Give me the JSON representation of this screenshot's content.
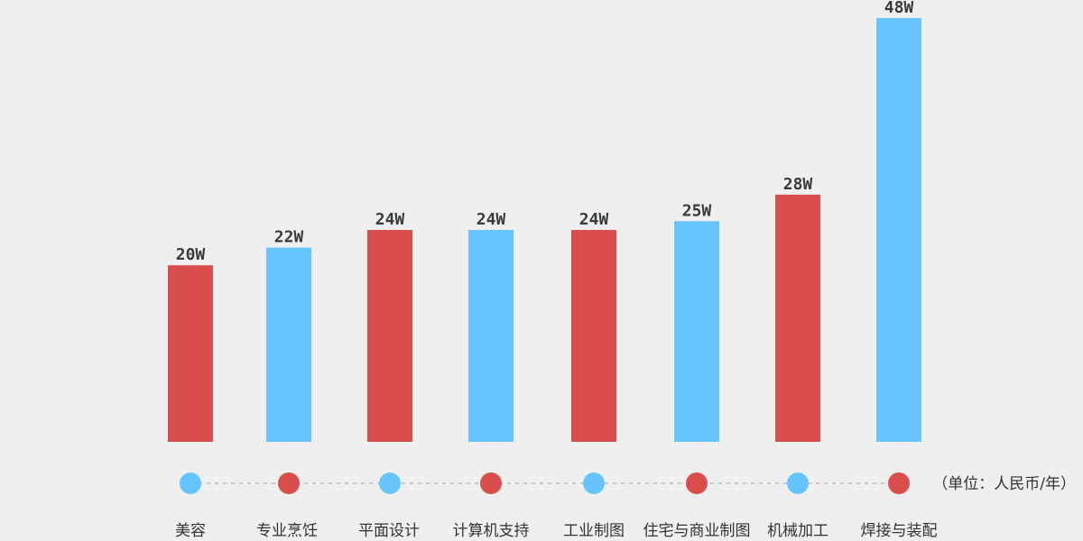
{
  "chart_data": {
    "type": "bar",
    "categories": [
      "美容",
      "专业烹饪",
      "平面设计",
      "计算机支持",
      "工业制图",
      "住宅与商业制图",
      "机械加工",
      "焊接与装配"
    ],
    "values": [
      20,
      22,
      24,
      24,
      24,
      25,
      28,
      48
    ],
    "value_labels": [
      "20W",
      "22W",
      "24W",
      "24W",
      "24W",
      "25W",
      "28W",
      "48W"
    ],
    "unit_note": "（单位：人民币/年）",
    "colors": {
      "red": "#d94d4d",
      "blue": "#66c5ff",
      "dots_line": "#c8c8c8",
      "background": "#efefef"
    },
    "bar_colors": [
      "red",
      "blue",
      "red",
      "blue",
      "red",
      "blue",
      "red",
      "blue"
    ],
    "dot_colors": [
      "blue",
      "red",
      "blue",
      "red",
      "blue",
      "red",
      "blue",
      "red"
    ],
    "grid": false,
    "legend": "none"
  }
}
